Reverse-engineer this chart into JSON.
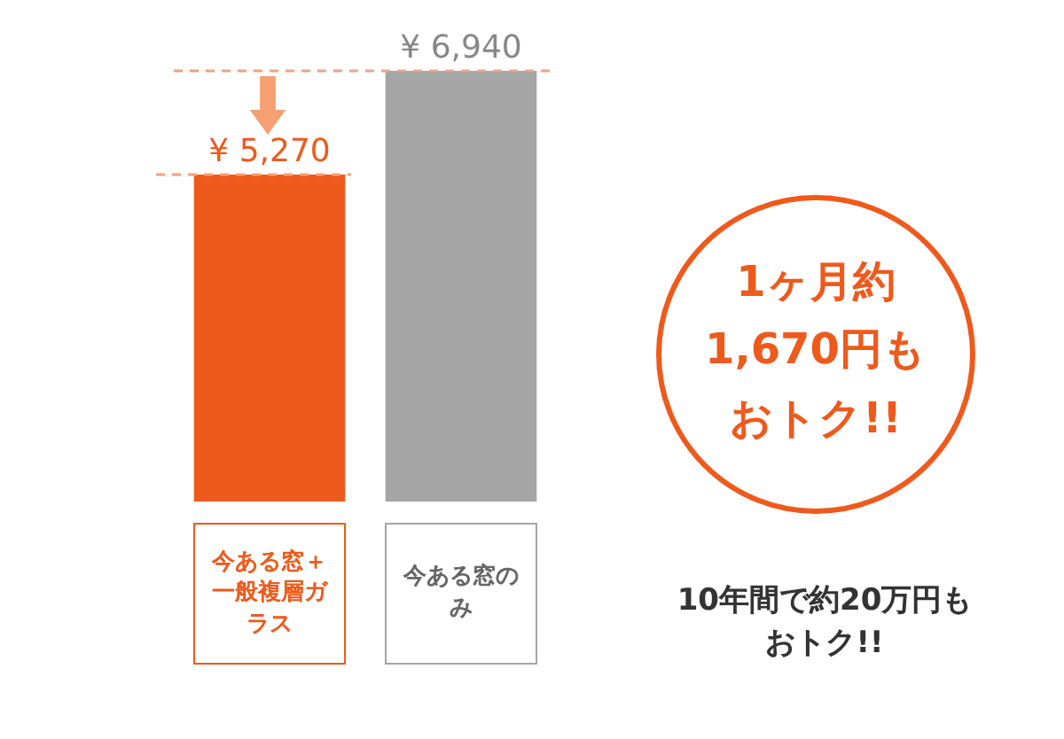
{
  "chart_data": {
    "type": "bar",
    "categories": [
      "今ある窓＋一般複層ガラス",
      "今ある窓のみ"
    ],
    "values": [
      5270,
      6940
    ],
    "value_labels": [
      "¥ 5,270",
      "¥ 6,940"
    ],
    "colors": [
      "#ee5a1c",
      "#a5a5a5"
    ],
    "ref_lines": [
      {
        "axis": "y",
        "value": 5270,
        "color": "#f4a27a",
        "line_style": "dashed"
      },
      {
        "axis": "y",
        "value": 6940,
        "color": "#f4a27a",
        "line_style": "dashed"
      }
    ],
    "annotations": [
      "1ヶ月約1,670円もおトク!!",
      "10年間で約20万円もおトク!!"
    ],
    "legend": false
  }
}
